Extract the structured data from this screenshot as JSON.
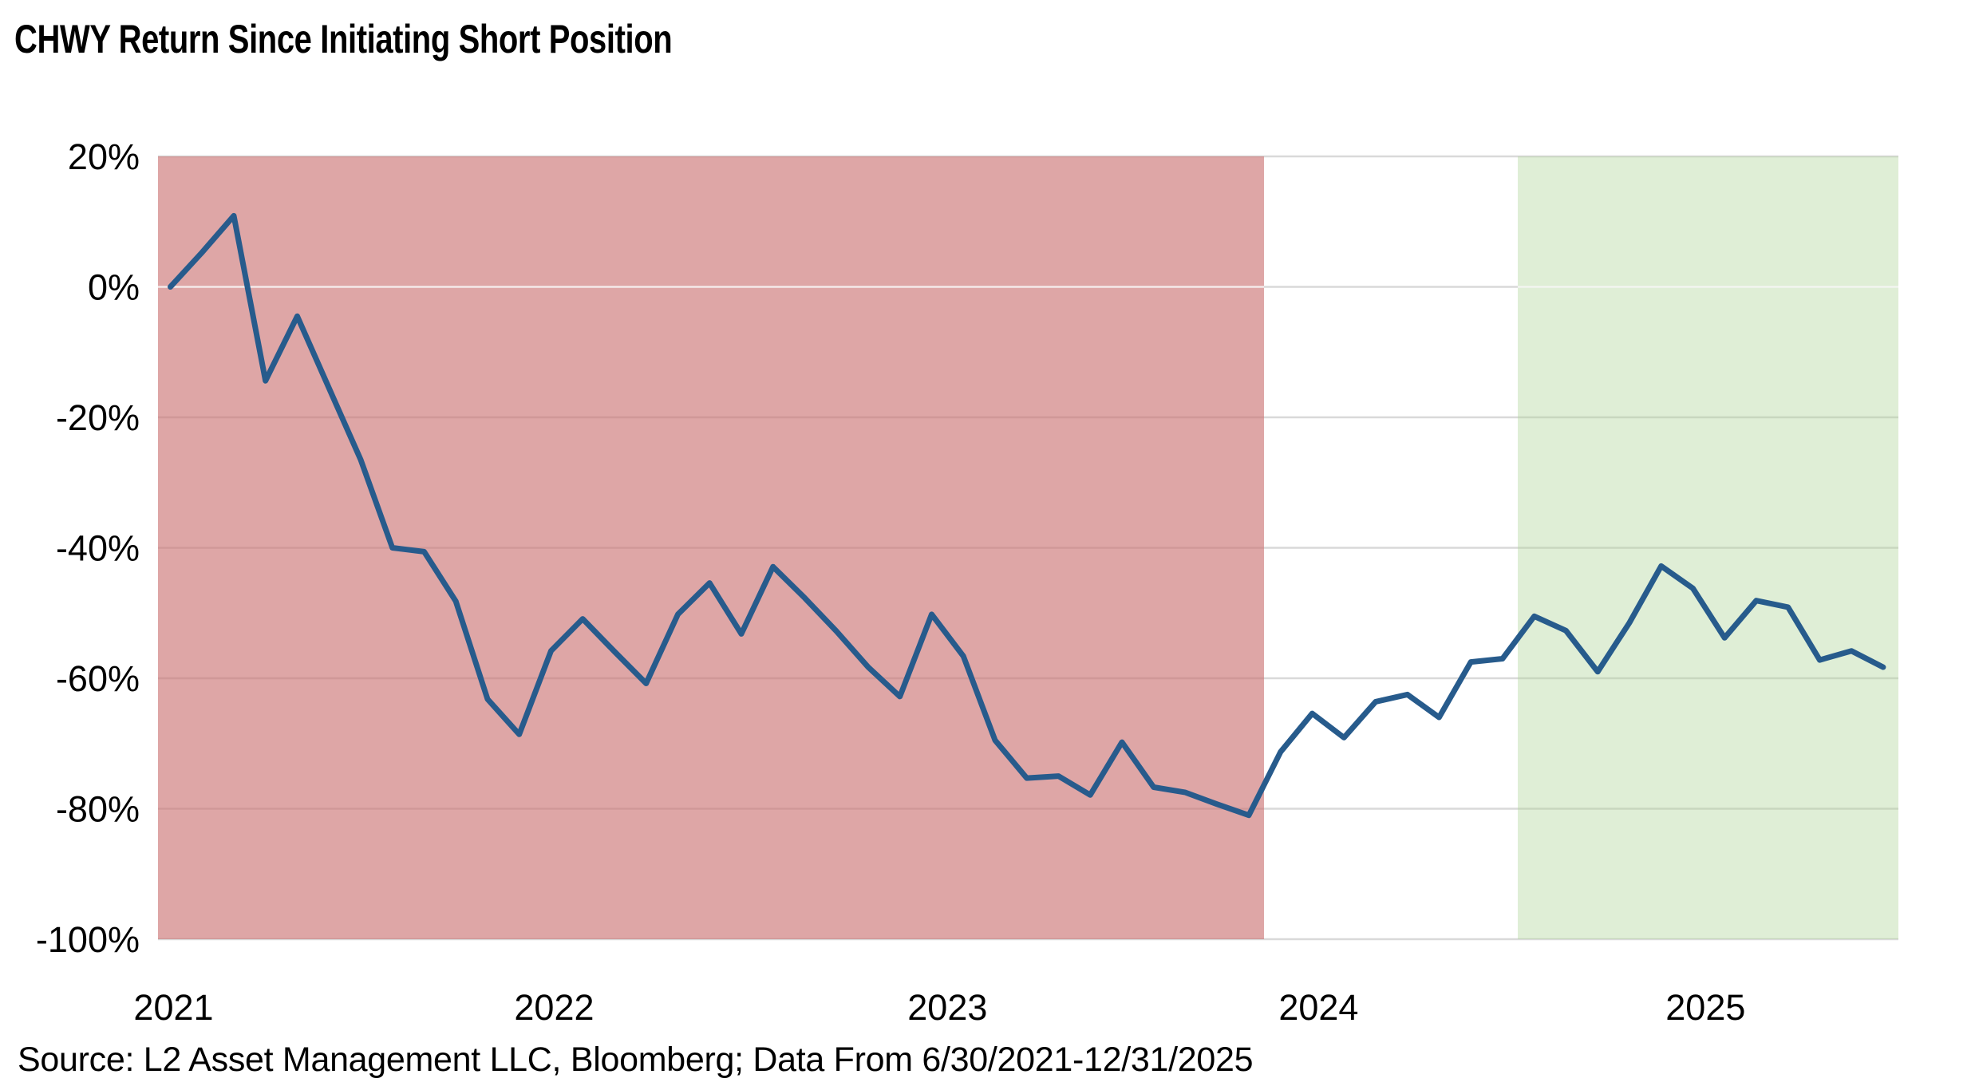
{
  "page": {
    "title": "CHWY Return Since Initiating Short Position",
    "source_note": "Source: L2 Asset Management LLC, Bloomberg; Data From 6/30/2021-12/31/2025"
  },
  "chart_data": {
    "type": "line",
    "title": "CHWY Return Since Initiating Short Position",
    "xlabel": "",
    "ylabel": "",
    "series_name": "CHWY return since initiating short position",
    "x": [
      "Jun-2021",
      "Jul-2021",
      "Aug-2021",
      "Sep-2021",
      "Oct-2021",
      "Nov-2021",
      "Dec-2021",
      "Jan-2022",
      "Feb-2022",
      "Mar-2022",
      "Apr-2022",
      "May-2022",
      "Jun-2022",
      "Jul-2022",
      "Aug-2022",
      "Sep-2022",
      "Oct-2022",
      "Nov-2022",
      "Dec-2022",
      "Jan-2023",
      "Feb-2023",
      "Mar-2023",
      "Apr-2023",
      "May-2023",
      "Jun-2023",
      "Jul-2023",
      "Aug-2023",
      "Sep-2023",
      "Oct-2023",
      "Nov-2023",
      "Dec-2023",
      "Jan-2024",
      "Feb-2024",
      "Mar-2024",
      "Apr-2024",
      "May-2024",
      "Jun-2024",
      "Jul-2024",
      "Aug-2024",
      "Sep-2024",
      "Oct-2024",
      "Nov-2024",
      "Dec-2024",
      "Jan-2025",
      "Feb-2025",
      "Mar-2025",
      "Apr-2025",
      "May-2025",
      "Jun-2025",
      "Jul-2025",
      "Aug-2025",
      "Sep-2025",
      "Oct-2025",
      "Nov-2025",
      "Dec-2025"
    ],
    "values": [
      0.0,
      5.3,
      10.9,
      -14.4,
      -4.5,
      -15.5,
      -26.5,
      -40.0,
      -40.6,
      -48.2,
      -63.2,
      -68.6,
      -55.8,
      -50.9,
      -55.9,
      -60.8,
      -50.2,
      -45.4,
      -53.2,
      -42.9,
      -47.7,
      -52.8,
      -58.3,
      -62.8,
      -50.2,
      -56.6,
      -69.5,
      -75.3,
      -75.0,
      -77.9,
      -69.8,
      -76.7,
      -77.5,
      -79.3,
      -81.0,
      -71.3,
      -65.4,
      -69.1,
      -63.6,
      -62.5,
      -66.0,
      -57.5,
      -57.0,
      -50.5,
      -52.7,
      -59.0,
      -51.5,
      -42.8,
      -46.2,
      -53.8,
      -48.1,
      -49.1,
      -57.2,
      -55.8,
      -58.3
    ],
    "y_unit": "%",
    "ylim": [
      -100,
      20
    ],
    "yticks": [
      {
        "value": 20,
        "label": "20%"
      },
      {
        "value": 0,
        "label": "0%"
      },
      {
        "value": -20,
        "label": "-20%"
      },
      {
        "value": -40,
        "label": "-40%"
      },
      {
        "value": -60,
        "label": "-60%"
      },
      {
        "value": -80,
        "label": "-80%"
      },
      {
        "value": -100,
        "label": "-100%"
      }
    ],
    "xticks": [
      {
        "label": "2021",
        "index": 0.1
      },
      {
        "label": "2022",
        "index": 12.1
      },
      {
        "label": "2023",
        "index": 24.5
      },
      {
        "label": "2024",
        "index": 36.2
      },
      {
        "label": "2025",
        "index": 48.4
      }
    ],
    "x_index_range": [
      -0.39,
      54.48
    ],
    "grid": true,
    "legend_position": "none",
    "line_color": "#275b8c",
    "gridline_color": "#d9d9d9",
    "background_bands": [
      {
        "name": "red-shaded-period",
        "color": "rgba(201,112,112,0.62)",
        "from_index": -0.39,
        "to_index": 34.48,
        "span_months": "Jun 2021 - Apr 2024"
      },
      {
        "name": "green-shaded-period",
        "color": "rgba(176,213,152,0.40)",
        "from_index": 42.48,
        "to_index": 54.48,
        "span_months": "Jan 2025 - Dec 2025"
      }
    ],
    "source": "Source: L2 Asset Management LLC, Bloomberg; Data From 6/30/2021-12/31/2025"
  }
}
